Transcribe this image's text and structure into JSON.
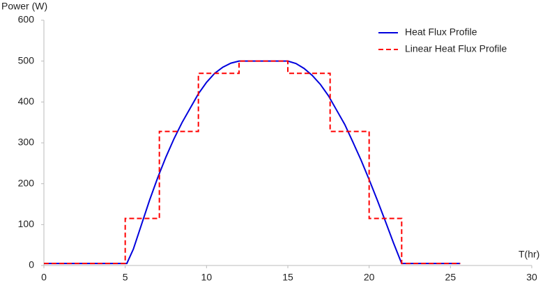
{
  "chart_data": {
    "type": "line",
    "y_label": "Power (W)",
    "x_label": "T(hr)",
    "xlim": [
      0,
      30
    ],
    "xticks": [
      0,
      5,
      10,
      15,
      20,
      25,
      30
    ],
    "ylim": [
      0,
      600
    ],
    "yticks": [
      0,
      100,
      200,
      300,
      400,
      500,
      600
    ],
    "legend": "top-right",
    "series": [
      {
        "name": "Heat Flux Profile",
        "color": "#0000dd",
        "dash": false,
        "x": [
          0,
          5.1,
          5.5,
          6,
          6.5,
          7,
          7.5,
          8,
          8.5,
          9,
          9.5,
          10,
          10.5,
          11,
          11.5,
          12,
          15,
          15.5,
          16,
          16.5,
          17,
          17.5,
          18,
          18.5,
          19,
          19.5,
          20,
          20.5,
          21,
          21.5,
          22,
          25.6
        ],
        "values": [
          5,
          5,
          40,
          100,
          160,
          215,
          265,
          310,
          350,
          385,
          420,
          448,
          470,
          485,
          495,
          500,
          500,
          494,
          482,
          465,
          443,
          415,
          380,
          345,
          302,
          258,
          210,
          160,
          108,
          55,
          5,
          5
        ]
      },
      {
        "name": "Linear Heat Flux Profile",
        "color": "#ff0000",
        "dash": true,
        "x": [
          0,
          5,
          5,
          7.1,
          7.1,
          9.5,
          9.5,
          12,
          12,
          15,
          15,
          17.6,
          17.6,
          20,
          20,
          22,
          22,
          25.6
        ],
        "values": [
          5,
          5,
          115,
          115,
          328,
          328,
          470,
          470,
          500,
          500,
          470,
          470,
          328,
          328,
          115,
          115,
          5,
          5
        ]
      }
    ]
  }
}
